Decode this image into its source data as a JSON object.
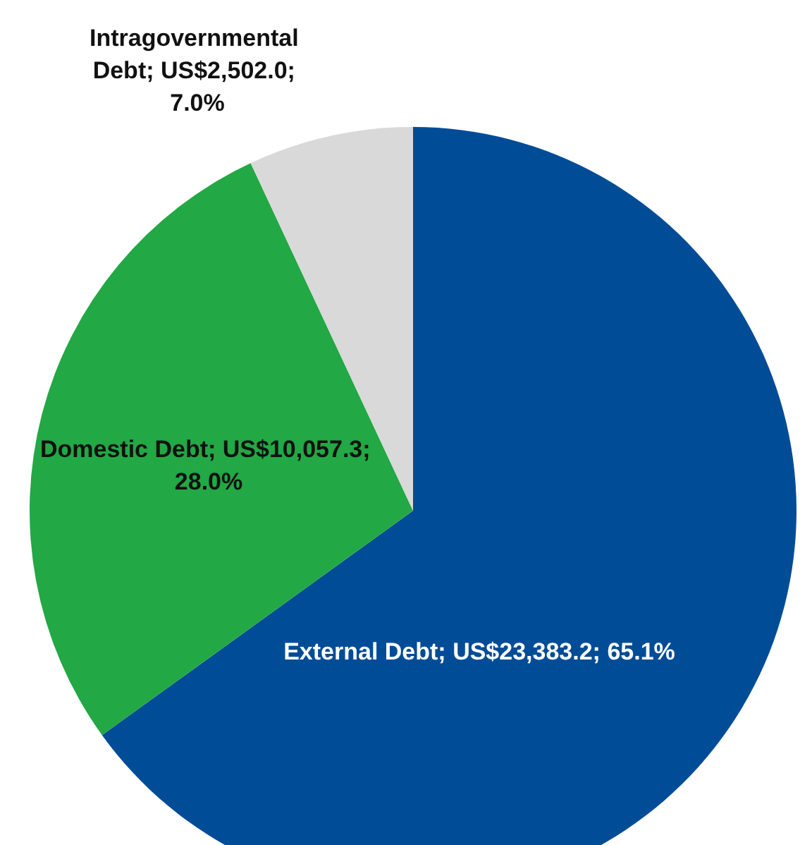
{
  "chart_data": {
    "type": "pie",
    "categories": [
      "External Debt",
      "Domestic Debt",
      "Intragovernmental Debt"
    ],
    "values": [
      23383.2,
      10057.3,
      2502.0
    ],
    "value_labels": [
      "US$23,383.2; 65.1%",
      "US$10,057.3; 28.0%",
      "US$2,502.0; 7.0%"
    ],
    "colors": [
      "#004c97",
      "#22a844",
      "#d9d9d9"
    ],
    "legend": false
  }
}
